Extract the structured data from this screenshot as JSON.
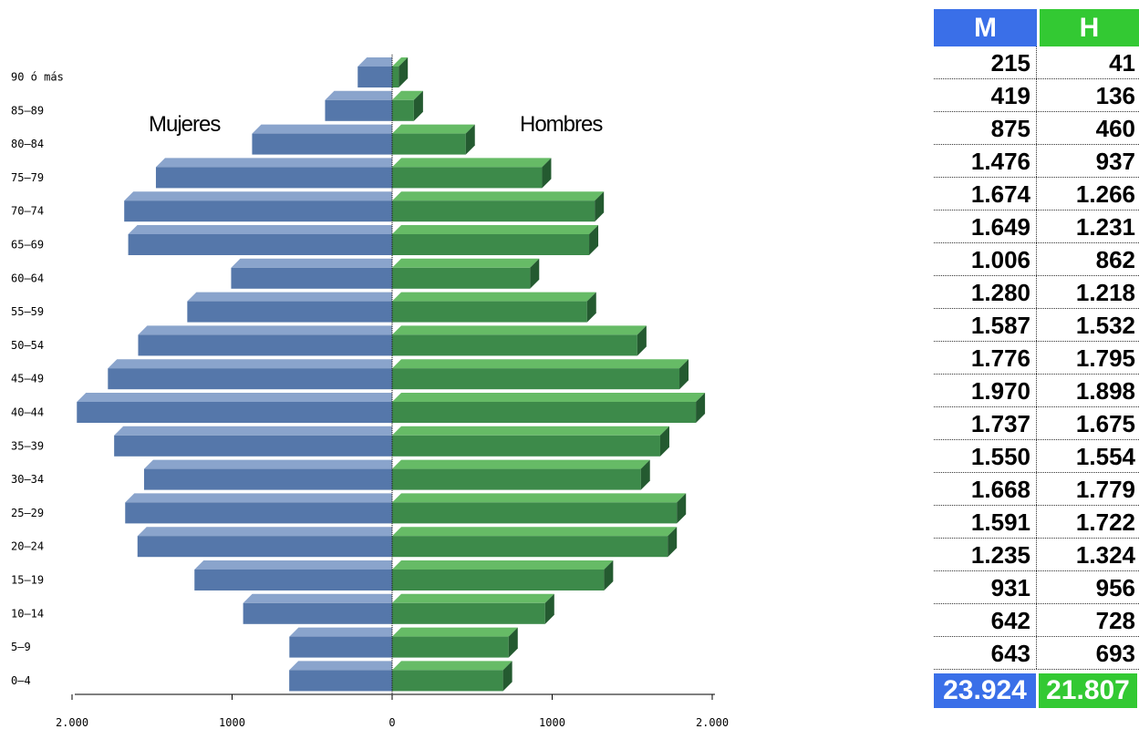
{
  "chart_data": {
    "type": "bar",
    "subtype": "population-pyramid",
    "categories": [
      "90 ó más",
      "85–89",
      "80–84",
      "75–79",
      "70–74",
      "65–69",
      "60–64",
      "55–59",
      "50–54",
      "45–49",
      "40–44",
      "35–39",
      "30–34",
      "25–29",
      "20–24",
      "15–19",
      "10–14",
      "5–9",
      "0–4"
    ],
    "series": [
      {
        "name": "Mujeres",
        "color": "#5577aa",
        "values": [
          215,
          419,
          875,
          1476,
          1674,
          1649,
          1006,
          1280,
          1587,
          1776,
          1970,
          1737,
          1550,
          1668,
          1591,
          1235,
          931,
          642,
          643
        ]
      },
      {
        "name": "Hombres",
        "color": "#3d8a4a",
        "values": [
          41,
          136,
          460,
          937,
          1266,
          1231,
          862,
          1218,
          1532,
          1795,
          1898,
          1675,
          1554,
          1779,
          1722,
          1324,
          956,
          728,
          693
        ]
      }
    ],
    "x_ticks": [
      "2.000",
      "1000",
      "0",
      "1000",
      "2.000"
    ],
    "xlim": [
      -2000,
      2000
    ],
    "legend": "inside-top"
  },
  "table": {
    "header_m": "M",
    "header_h": "H",
    "rows": [
      {
        "m": "215",
        "h": "41"
      },
      {
        "m": "419",
        "h": "136"
      },
      {
        "m": "875",
        "h": "460"
      },
      {
        "m": "1.476",
        "h": "937"
      },
      {
        "m": "1.674",
        "h": "1.266"
      },
      {
        "m": "1.649",
        "h": "1.231"
      },
      {
        "m": "1.006",
        "h": "862"
      },
      {
        "m": "1.280",
        "h": "1.218"
      },
      {
        "m": "1.587",
        "h": "1.532"
      },
      {
        "m": "1.776",
        "h": "1.795"
      },
      {
        "m": "1.970",
        "h": "1.898"
      },
      {
        "m": "1.737",
        "h": "1.675"
      },
      {
        "m": "1.550",
        "h": "1.554"
      },
      {
        "m": "1.668",
        "h": "1.779"
      },
      {
        "m": "1.591",
        "h": "1.722"
      },
      {
        "m": "1.235",
        "h": "1.324"
      },
      {
        "m": "931",
        "h": "956"
      },
      {
        "m": "642",
        "h": "728"
      },
      {
        "m": "643",
        "h": "693"
      }
    ],
    "total_m": "23.924",
    "total_h": "21.807"
  },
  "colors": {
    "female_bar": "#5577aa",
    "female_top": "#8aa4cc",
    "male_bar": "#3d8a4a",
    "male_top": "#66bb66",
    "male_side": "#245a30",
    "header_m": "#3a6fe8",
    "header_h": "#33c933"
  }
}
